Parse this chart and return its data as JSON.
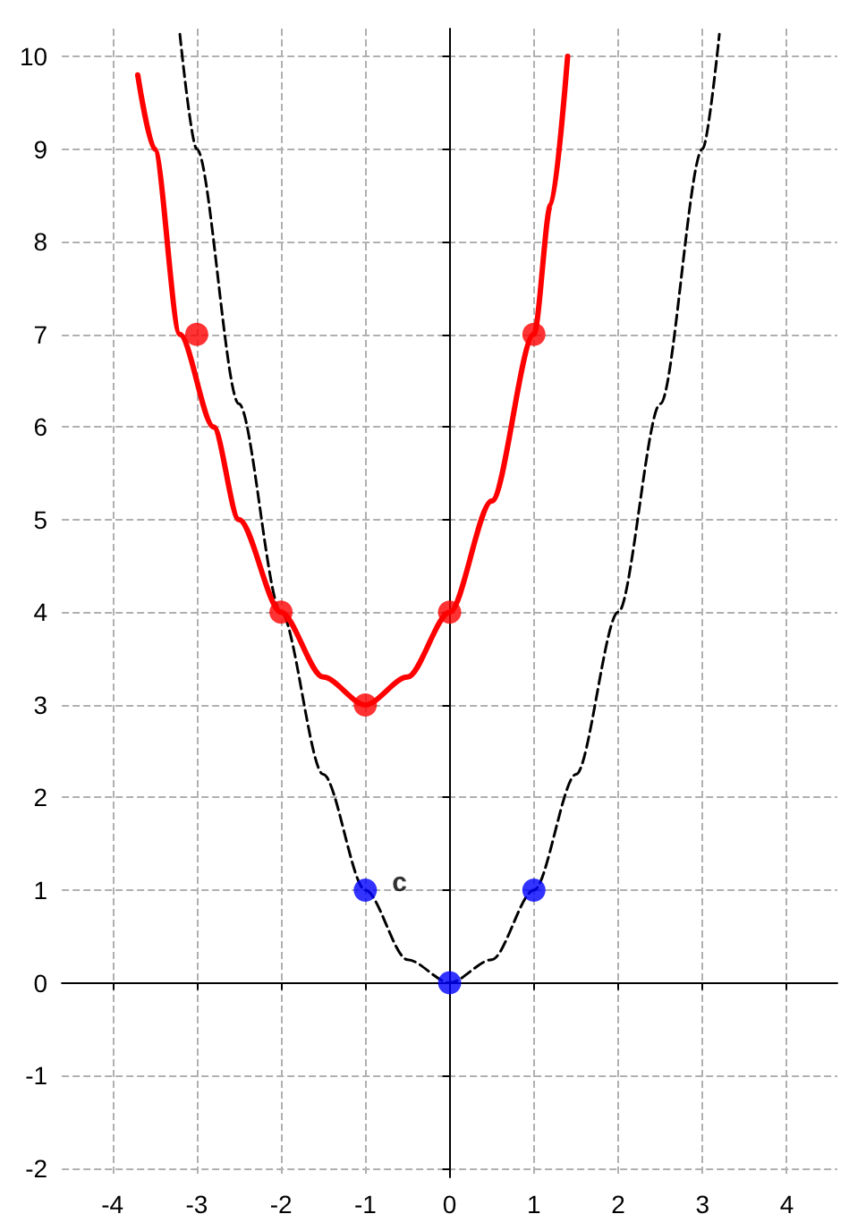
{
  "chart_data": {
    "type": "line",
    "xlim": [
      -4.6,
      4.6
    ],
    "ylim": [
      -2.1,
      10.3
    ],
    "xticks": [
      -4,
      -3,
      -2,
      -1,
      0,
      1,
      2,
      3,
      4
    ],
    "yticks": [
      -2,
      -1,
      0,
      1,
      2,
      3,
      4,
      5,
      6,
      7,
      8,
      9,
      10
    ],
    "grid": true,
    "annotations": [
      {
        "text": "c",
        "x": -1,
        "y": 1
      }
    ],
    "series": [
      {
        "type": "line",
        "color": "#000000",
        "line_style": "dashed",
        "marker": "none",
        "x": [
          -3.2,
          -3,
          -2.5,
          -2,
          -1.5,
          -1,
          -0.5,
          0,
          0.5,
          1,
          1.5,
          2,
          2.5,
          3,
          3.2
        ],
        "values": [
          10.24,
          9,
          6.25,
          4,
          2.25,
          1,
          0.25,
          0,
          0.25,
          1,
          2.25,
          4,
          6.25,
          9,
          10.24
        ]
      },
      {
        "type": "line",
        "color": "#ff0000",
        "line_style": "solid",
        "marker": "none",
        "x": [
          -3.7,
          -3.5,
          -3.2,
          -2.8,
          -2.5,
          -2,
          -1.5,
          -1,
          -0.5,
          0,
          0.5,
          1,
          1.2,
          1.4
        ],
        "values": [
          9.8,
          9,
          7,
          6,
          5,
          4,
          3.3,
          3,
          3.3,
          4,
          5.2,
          7,
          8.4,
          10
        ]
      },
      {
        "type": "scatter",
        "color": "#ff0000",
        "marker": "circle",
        "x": [
          -3,
          -2,
          -1,
          0,
          1
        ],
        "values": [
          7,
          4,
          3,
          4,
          7
        ]
      },
      {
        "type": "scatter",
        "color": "#0000ff",
        "marker": "circle",
        "x": [
          -1,
          0,
          1
        ],
        "values": [
          1,
          0,
          1
        ]
      }
    ]
  }
}
